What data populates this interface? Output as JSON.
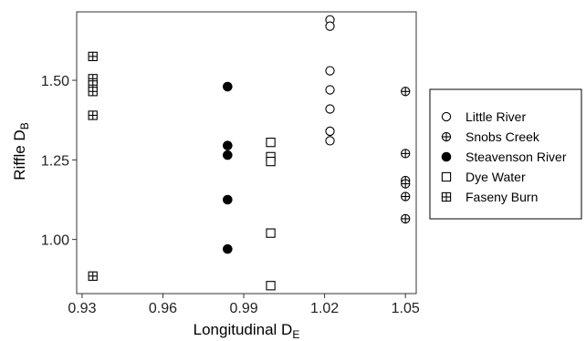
{
  "chart_data": {
    "type": "scatter",
    "xlabel": "Longitudinal D",
    "xlabel_sub": "E",
    "ylabel": "Riffle D",
    "ylabel_sub": "B",
    "xlim": [
      0.928,
      1.054
    ],
    "ylim": [
      0.83,
      1.715
    ],
    "xticks": [
      0.93,
      0.96,
      0.99,
      1.02,
      1.05
    ],
    "xtick_labels": [
      "0.93",
      "0.96",
      "0.99",
      "1.02",
      "1.05"
    ],
    "yticks": [
      1.0,
      1.25,
      1.5
    ],
    "ytick_labels": [
      "1.00",
      "1.25",
      "1.50"
    ],
    "grid": false,
    "legend_position": "right",
    "series": [
      {
        "name": "Little River",
        "marker": "circle-open",
        "x": [
          1.022,
          1.022,
          1.022,
          1.022,
          1.022,
          1.022,
          1.022
        ],
        "y": [
          1.69,
          1.67,
          1.53,
          1.47,
          1.41,
          1.34,
          1.31
        ]
      },
      {
        "name": "Snobs Creek",
        "marker": "circle-plus",
        "x": [
          1.05,
          1.05,
          1.05,
          1.05,
          1.05,
          1.05
        ],
        "y": [
          1.465,
          1.27,
          1.185,
          1.175,
          1.135,
          1.065
        ]
      },
      {
        "name": "Steavenson River",
        "marker": "circle-filled",
        "x": [
          0.984,
          0.984,
          0.984,
          0.984,
          0.984
        ],
        "y": [
          1.48,
          1.295,
          1.265,
          1.125,
          0.97
        ]
      },
      {
        "name": "Dye Water",
        "marker": "square-open",
        "x": [
          1.0,
          1.0,
          1.0,
          1.0,
          1.0
        ],
        "y": [
          1.305,
          1.26,
          1.245,
          1.02,
          0.855
        ]
      },
      {
        "name": "Faseny Burn",
        "marker": "square-plus",
        "x": [
          0.934,
          0.934,
          0.934,
          0.934,
          0.934,
          0.934
        ],
        "y": [
          1.575,
          1.505,
          1.485,
          1.465,
          1.39,
          0.885
        ]
      }
    ]
  }
}
